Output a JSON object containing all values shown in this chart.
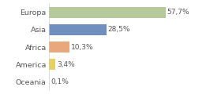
{
  "categories": [
    "Europa",
    "Asia",
    "Africa",
    "America",
    "Oceania"
  ],
  "values": [
    57.7,
    28.5,
    10.3,
    3.4,
    0.1
  ],
  "labels": [
    "57,7%",
    "28,5%",
    "10,3%",
    "3,4%",
    "0,1%"
  ],
  "bar_colors": [
    "#b5c99a",
    "#6f8fbf",
    "#e8a87c",
    "#e8d060",
    "#d0d0d0"
  ],
  "background_color": "#ffffff",
  "xlim": [
    0,
    72
  ],
  "bar_height": 0.65,
  "label_fontsize": 6.5,
  "tick_fontsize": 6.8
}
